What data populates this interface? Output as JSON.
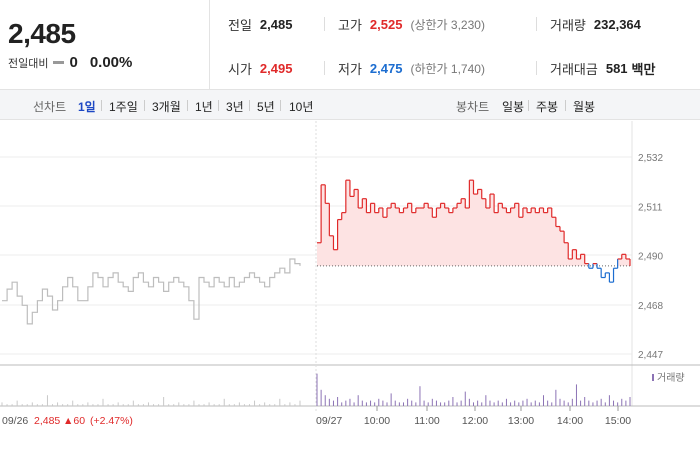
{
  "summary": {
    "price": "2,485",
    "diff_label": "전일대비",
    "diff_value": "0",
    "diff_pct": "0.00%"
  },
  "stats": {
    "prev_label": "전일",
    "prev_value": "2,485",
    "high_label": "고가",
    "high_value": "2,525",
    "high_limit": "(상한가 3,230)",
    "volume_label": "거래량",
    "volume_value": "232,364",
    "open_label": "시가",
    "open_value": "2,495",
    "low_label": "저가",
    "low_value": "2,475",
    "low_limit": "(하한가 1,740)",
    "amount_label": "거래대금",
    "amount_value": "581",
    "amount_unit": "백만"
  },
  "toolbar": {
    "line_label": "선차트",
    "ranges": [
      "1일",
      "1주일",
      "3개월",
      "1년",
      "3년",
      "5년",
      "10년"
    ],
    "selected_range": "1일",
    "candle_label": "봉차트",
    "candles": [
      "일봉",
      "주봉",
      "월봉"
    ]
  },
  "chart_data": {
    "type": "line",
    "ylim": [
      2447,
      2532
    ],
    "yticks": [
      "2,532",
      "2,511",
      "2,490",
      "2,468",
      "2,447"
    ],
    "baseline": 2485,
    "prev_day": {
      "date": "09/26",
      "close_text": "2,485",
      "change_text": "▲60",
      "change_pct": "(+2.47%)",
      "values": [
        2470,
        2475,
        2478,
        2472,
        2468,
        2460,
        2465,
        2470,
        2475,
        2472,
        2466,
        2470,
        2476,
        2480,
        2476,
        2470,
        2470,
        2476,
        2482,
        2480,
        2476,
        2480,
        2482,
        2478,
        2476,
        2474,
        2480,
        2482,
        2478,
        2476,
        2480,
        2478,
        2474,
        2478,
        2480,
        2478,
        2476,
        2470,
        2462,
        2480,
        2478,
        2476,
        2480,
        2478,
        2476,
        2480,
        2476,
        2478,
        2480,
        2482,
        2480,
        2478,
        2476,
        2480,
        2482,
        2484,
        2482,
        2488,
        2486,
        2485
      ]
    },
    "today": {
      "date": "09/27",
      "x_labels": [
        "10:00",
        "11:00",
        "12:00",
        "13:00",
        "14:00",
        "15:00"
      ],
      "values": [
        2495,
        2520,
        2512,
        2498,
        2492,
        2505,
        2508,
        2522,
        2515,
        2518,
        2510,
        2514,
        2508,
        2512,
        2508,
        2510,
        2506,
        2510,
        2512,
        2510,
        2508,
        2510,
        2512,
        2508,
        2510,
        2510,
        2512,
        2510,
        2506,
        2510,
        2512,
        2510,
        2508,
        2510,
        2512,
        2514,
        2510,
        2522,
        2516,
        2518,
        2514,
        2510,
        2516,
        2508,
        2512,
        2510,
        2508,
        2510,
        2512,
        2506,
        2510,
        2508,
        2510,
        2508,
        2510,
        2508,
        2510,
        2506,
        2502,
        2500,
        2495,
        2488,
        2492,
        2488,
        2490,
        2486,
        2484,
        2486,
        2484,
        2480,
        2482,
        2478,
        2484,
        2488,
        2490,
        2488,
        2485
      ]
    },
    "volume_label": "거래량",
    "volume_prev": [
      2,
      1,
      1,
      3,
      1,
      1,
      2,
      1,
      1,
      6,
      1,
      2,
      1,
      1,
      3,
      1,
      1,
      2,
      1,
      1,
      4,
      1,
      1,
      2,
      1,
      1,
      3,
      1,
      1,
      2,
      1,
      1,
      5,
      1,
      1,
      2,
      1,
      1,
      3,
      1,
      1,
      2,
      1,
      1,
      4,
      1,
      1,
      2,
      1,
      1,
      3,
      1,
      2,
      1,
      1,
      4,
      1,
      2,
      1,
      3
    ],
    "volume_today": [
      18,
      9,
      6,
      4,
      3,
      5,
      2,
      3,
      4,
      2,
      6,
      3,
      2,
      3,
      2,
      4,
      3,
      2,
      7,
      3,
      2,
      2,
      4,
      3,
      2,
      11,
      3,
      2,
      4,
      3,
      2,
      2,
      3,
      5,
      2,
      3,
      8,
      4,
      2,
      3,
      2,
      6,
      3,
      2,
      3,
      2,
      4,
      2,
      3,
      2,
      3,
      4,
      2,
      3,
      2,
      6,
      3,
      2,
      9,
      4,
      3,
      2,
      4,
      12,
      3,
      5,
      3,
      2,
      3,
      4,
      2,
      6,
      3,
      2,
      4,
      3,
      5
    ]
  }
}
